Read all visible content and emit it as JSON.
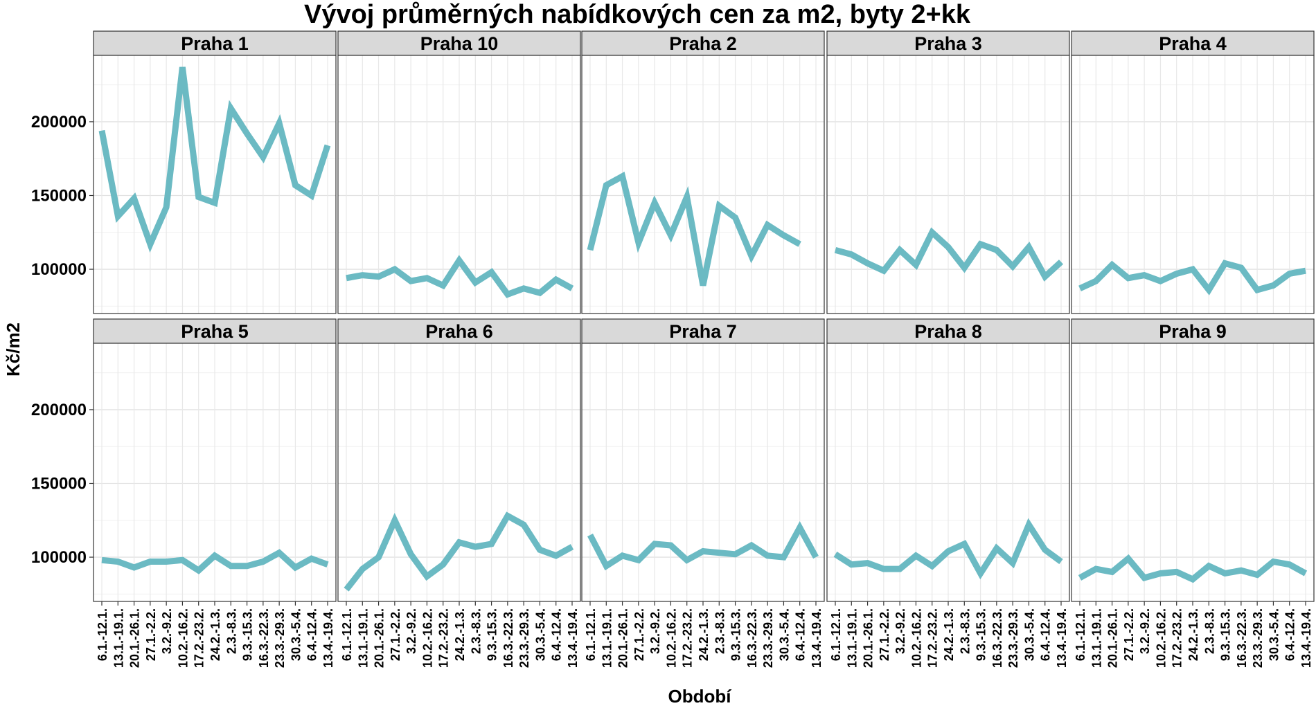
{
  "chart_data": {
    "type": "line",
    "title": "Vývoj průměrných nabídkových cen za m2, byty 2+kk",
    "xlabel": "Období",
    "ylabel": "Kč/m2",
    "ylim": [
      70000,
      245000
    ],
    "yticks": [
      100000,
      150000,
      200000
    ],
    "grid": true,
    "legend": "none",
    "line_color": "#6bbac3",
    "strip_color": "#d9d9d9",
    "x": [
      "6.1.-12.1.",
      "13.1.-19.1.",
      "20.1.-26.1.",
      "27.1.-2.2.",
      "3.2.-9.2.",
      "10.2.-16.2.",
      "17.2.-23.2.",
      "24.2.-1.3.",
      "2.3.-8.3.",
      "9.3.-15.3.",
      "16.3.-22.3.",
      "23.3.-29.3.",
      "30.3.-5.4.",
      "6.4.-12.4.",
      "13.4.-19.4."
    ],
    "panels": [
      {
        "name": "Praha 1",
        "values": [
          194000,
          136000,
          148000,
          117000,
          142000,
          237000,
          149000,
          145000,
          209000,
          192000,
          176000,
          199000,
          157000,
          150000,
          184000
        ]
      },
      {
        "name": "Praha 10",
        "values": [
          94000,
          96000,
          95000,
          100000,
          92000,
          94000,
          89000,
          106000,
          91000,
          98000,
          83000,
          87000,
          84000,
          93000,
          87000
        ]
      },
      {
        "name": "Praha 2",
        "values": [
          113000,
          157000,
          163000,
          118000,
          145000,
          123000,
          149000,
          89000,
          143000,
          135000,
          109000,
          130000,
          123000,
          117000,
          null
        ]
      },
      {
        "name": "Praha 3",
        "values": [
          113000,
          110000,
          104000,
          99000,
          113000,
          103000,
          125000,
          115000,
          101000,
          117000,
          113000,
          102000,
          115000,
          95000,
          105000
        ]
      },
      {
        "name": "Praha 4",
        "values": [
          87000,
          92000,
          103000,
          94000,
          96000,
          92000,
          97000,
          100000,
          86000,
          104000,
          101000,
          86000,
          89000,
          97000,
          99000
        ]
      },
      {
        "name": "Praha 5",
        "values": [
          98000,
          97000,
          93000,
          97000,
          97000,
          98000,
          91000,
          101000,
          94000,
          94000,
          97000,
          103000,
          93000,
          99000,
          95000
        ]
      },
      {
        "name": "Praha 6",
        "values": [
          78000,
          92000,
          100000,
          125000,
          102000,
          87000,
          95000,
          110000,
          107000,
          109000,
          128000,
          122000,
          105000,
          101000,
          107000
        ]
      },
      {
        "name": "Praha 7",
        "values": [
          115000,
          94000,
          101000,
          98000,
          109000,
          108000,
          98000,
          104000,
          103000,
          102000,
          108000,
          101000,
          100000,
          120000,
          100000
        ]
      },
      {
        "name": "Praha 8",
        "values": [
          102000,
          95000,
          96000,
          92000,
          92000,
          101000,
          94000,
          104000,
          109000,
          89000,
          106000,
          96000,
          122000,
          105000,
          97000
        ]
      },
      {
        "name": "Praha 9",
        "values": [
          86000,
          92000,
          90000,
          99000,
          86000,
          89000,
          90000,
          85000,
          94000,
          89000,
          91000,
          88000,
          97000,
          95000,
          89000
        ]
      }
    ]
  }
}
